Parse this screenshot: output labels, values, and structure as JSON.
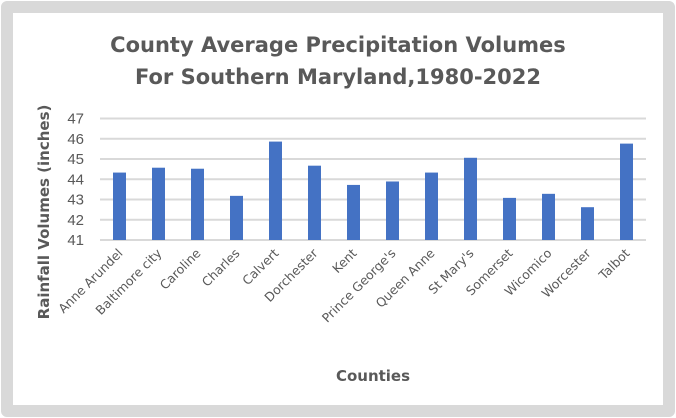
{
  "chart_data": {
    "type": "bar",
    "title": [
      "County  Average  Precipitation Volumes",
      "For Southern Maryland,1980-2022"
    ],
    "xlabel": "Counties",
    "ylabel": "Rainfall Volumes (inches)",
    "ylim": [
      41,
      47
    ],
    "yticks": [
      41,
      42,
      43,
      44,
      45,
      46,
      47
    ],
    "grid": true,
    "legend": "none",
    "bar_color": "#4472C4",
    "categories": [
      "Anne Arundel",
      "Baltimore city",
      "Caroline",
      "Charles",
      "Calvert",
      "Dorchester",
      "Kent",
      "Prince George's",
      "Queen Anne",
      "St Mary's",
      "Somerset",
      "Wicomico",
      "Worcester",
      "Talbot"
    ],
    "values": [
      44.33,
      44.57,
      44.52,
      43.18,
      45.86,
      44.67,
      43.72,
      43.89,
      44.33,
      45.06,
      43.08,
      43.28,
      42.62,
      45.76
    ]
  }
}
